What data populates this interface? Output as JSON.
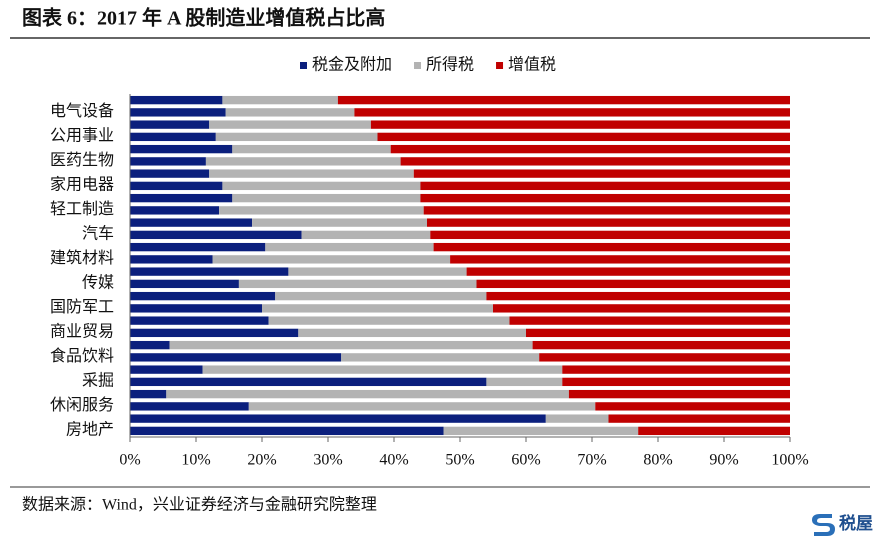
{
  "chart_data": {
    "type": "stacked_bar_horizontal",
    "title": "图表 6：2017 年 A 股制造业增值税占比高",
    "source": "数据来源：Wind，兴业证券经济与金融研究院整理",
    "watermark": "税屋",
    "categories": [
      null,
      "电气设备",
      null,
      "公用事业",
      null,
      "医药生物",
      null,
      "家用电器",
      null,
      "轻工制造",
      null,
      "汽车",
      null,
      "建筑材料",
      null,
      "传媒",
      null,
      "国防军工",
      null,
      "商业贸易",
      null,
      "食品饮料",
      null,
      "采掘",
      null,
      "休闲服务",
      null,
      "房地产"
    ],
    "series": [
      {
        "name": "税金及附加",
        "color": "#0b1f7d",
        "values": [
          14,
          14.5,
          12,
          13,
          15.5,
          11.5,
          12,
          14,
          15.5,
          13.5,
          18.5,
          26,
          20.5,
          12.5,
          24,
          16.5,
          22,
          20,
          21,
          25.5,
          6,
          32,
          11,
          54,
          5.5,
          18,
          63,
          47.5
        ]
      },
      {
        "name": "所得税",
        "color": "#b3b3b3",
        "values": [
          17.5,
          19.5,
          24.5,
          24.5,
          24,
          29.5,
          31,
          30,
          28.5,
          31,
          26.5,
          19.5,
          25.5,
          36,
          27,
          36,
          32,
          35,
          36.5,
          34.5,
          55,
          30,
          54.5,
          11.5,
          61,
          52.5,
          9.5,
          29.5
        ]
      },
      {
        "name": "增值税",
        "color": "#c00000",
        "values": [
          68.5,
          66,
          63.5,
          62.5,
          60.5,
          59,
          57,
          56,
          56,
          55.5,
          55,
          54.5,
          54,
          51.5,
          49,
          47.5,
          46,
          45,
          42.5,
          40,
          39,
          38,
          34.5,
          34.5,
          33.5,
          29.5,
          27.5,
          23
        ]
      }
    ],
    "xlim": [
      0,
      100
    ],
    "xticks": [
      {
        "value": 0,
        "label": "0%"
      },
      {
        "value": 10,
        "label": "10%"
      },
      {
        "value": 20,
        "label": "20%"
      },
      {
        "value": 30,
        "label": "30%"
      },
      {
        "value": 40,
        "label": "40%"
      },
      {
        "value": 50,
        "label": "50%"
      },
      {
        "value": 60,
        "label": "60%"
      },
      {
        "value": 70,
        "label": "70%"
      },
      {
        "value": 80,
        "label": "80%"
      },
      {
        "value": 90,
        "label": "90%"
      },
      {
        "value": 100,
        "label": "100%"
      }
    ],
    "legend": "top"
  }
}
